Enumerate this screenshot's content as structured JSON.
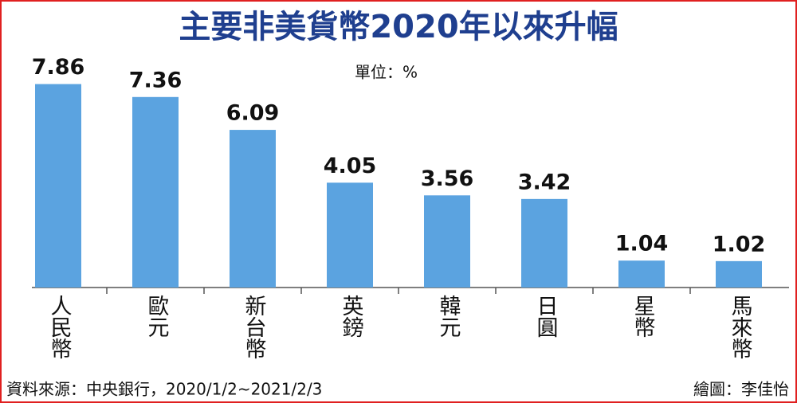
{
  "chart_data": {
    "type": "bar",
    "title": "主要非美貨幣2020年以來升幅",
    "unit": "單位：%",
    "categories": [
      "人民幣",
      "歐元",
      "新台幣",
      "英鎊",
      "韓元",
      "日圓",
      "星幣",
      "馬來幣"
    ],
    "values": [
      7.86,
      7.36,
      6.09,
      4.05,
      3.56,
      3.42,
      1.04,
      1.02
    ],
    "color": "#5ba3e0",
    "ylim": [
      0,
      8
    ],
    "source": "資料來源：中央銀行，2020/1/2~2021/2/3",
    "credit": "繪圖：李佳怡"
  }
}
